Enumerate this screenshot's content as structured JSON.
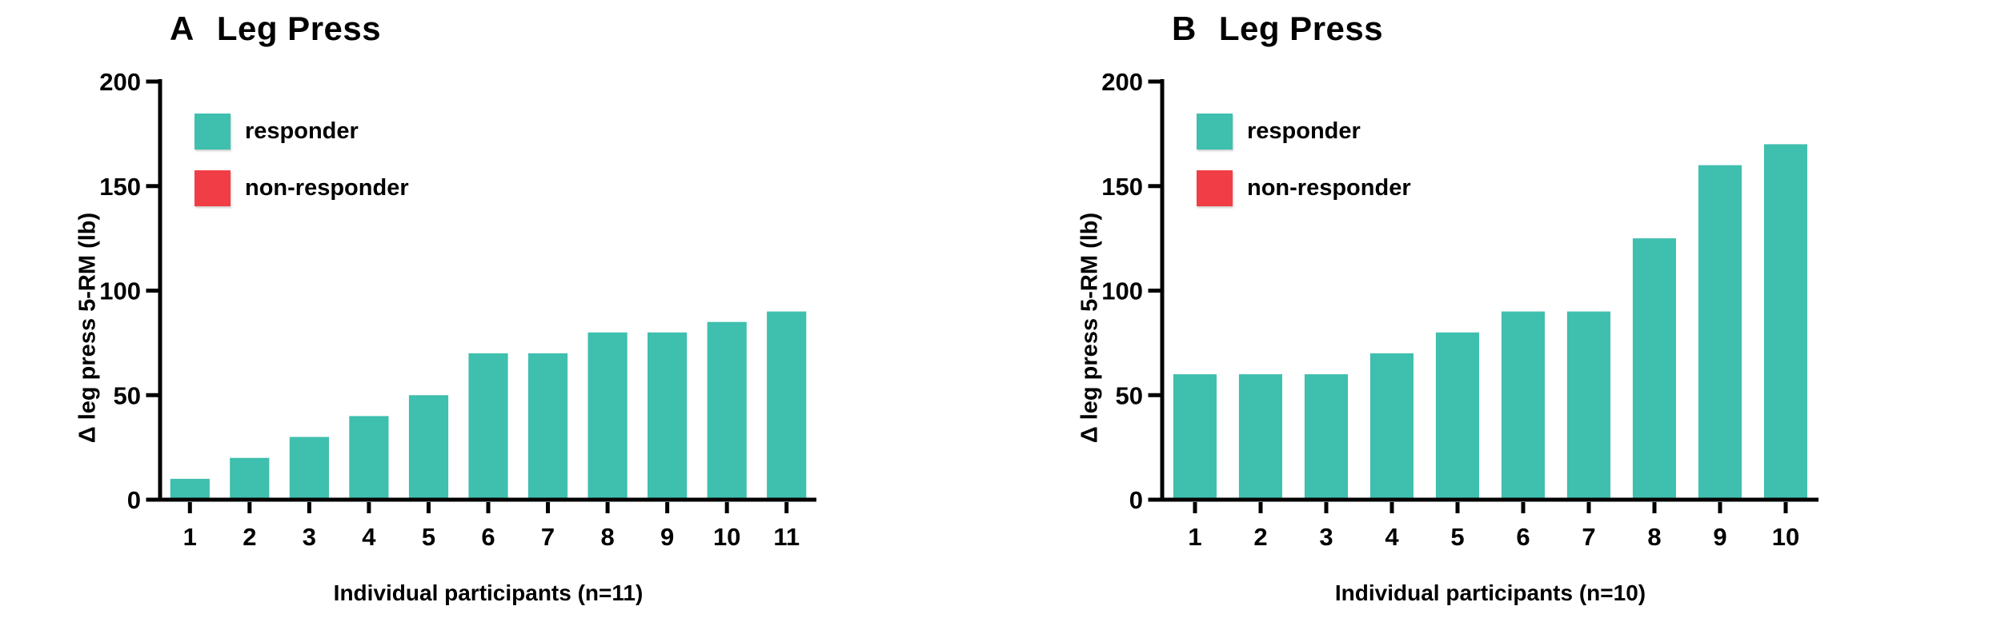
{
  "figure": {
    "background": "#ffffff",
    "colors": {
      "responder": "#3FBFAE",
      "non_responder": "#F13E46",
      "axis": "#000000",
      "text": "#000000"
    }
  },
  "chart_data": [
    {
      "type": "bar",
      "panel_label": "A",
      "title": "Leg Press",
      "categories": [
        "1",
        "2",
        "3",
        "4",
        "5",
        "6",
        "7",
        "8",
        "9",
        "10",
        "11"
      ],
      "series": [
        {
          "name": "responder",
          "color": "responder",
          "values": [
            10,
            20,
            30,
            40,
            50,
            70,
            70,
            80,
            80,
            85,
            90
          ]
        }
      ],
      "xlabel": "Individual participants (n=11)",
      "ylabel": "Δ leg press 5-RM (lb)",
      "ylim": [
        0,
        200
      ],
      "yticks": [
        0,
        50,
        100,
        150,
        200
      ],
      "grid": false,
      "legend_position": "upper-left-inside",
      "legend": [
        {
          "label": "responder",
          "color": "responder"
        },
        {
          "label": "non-responder",
          "color": "non_responder"
        }
      ]
    },
    {
      "type": "bar",
      "panel_label": "B",
      "title": "Leg Press",
      "categories": [
        "1",
        "2",
        "3",
        "4",
        "5",
        "6",
        "7",
        "8",
        "9",
        "10"
      ],
      "series": [
        {
          "name": "responder",
          "color": "responder",
          "values": [
            60,
            60,
            60,
            70,
            80,
            90,
            90,
            125,
            160,
            170
          ]
        }
      ],
      "xlabel": "Individual participants (n=10)",
      "ylabel": "Δ leg press 5-RM (lb)",
      "ylim": [
        0,
        200
      ],
      "yticks": [
        0,
        50,
        100,
        150,
        200
      ],
      "grid": false,
      "legend_position": "upper-left-inside",
      "legend": [
        {
          "label": "responder",
          "color": "responder"
        },
        {
          "label": "non-responder",
          "color": "non_responder"
        }
      ]
    }
  ]
}
